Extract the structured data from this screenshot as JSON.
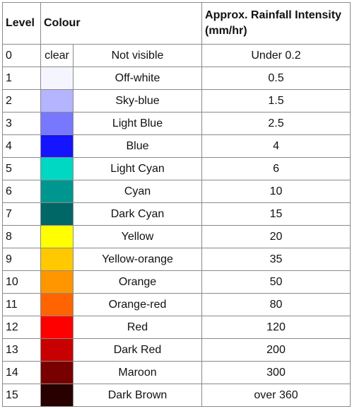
{
  "headers": {
    "level": "Level",
    "colour": "Colour",
    "intensity": "Approx. Rainfall Intensity (mm/hr)"
  },
  "rows": [
    {
      "level": "0",
      "swatch_text": "clear",
      "swatch_color": "#ffffff",
      "name": "Not visible",
      "intensity": "Under 0.2"
    },
    {
      "level": "1",
      "swatch_text": "",
      "swatch_color": "#f5f5ff",
      "name": "Off-white",
      "intensity": "0.5"
    },
    {
      "level": "2",
      "swatch_text": "",
      "swatch_color": "#b4b4ff",
      "name": "Sky-blue",
      "intensity": "1.5"
    },
    {
      "level": "3",
      "swatch_text": "",
      "swatch_color": "#7878ff",
      "name": "Light Blue",
      "intensity": "2.5"
    },
    {
      "level": "4",
      "swatch_text": "",
      "swatch_color": "#1414ff",
      "name": "Blue",
      "intensity": "4"
    },
    {
      "level": "5",
      "swatch_text": "",
      "swatch_color": "#00d8c3",
      "name": "Light Cyan",
      "intensity": "6"
    },
    {
      "level": "6",
      "swatch_text": "",
      "swatch_color": "#009690",
      "name": "Cyan",
      "intensity": "10"
    },
    {
      "level": "7",
      "swatch_text": "",
      "swatch_color": "#006666",
      "name": "Dark Cyan",
      "intensity": "15"
    },
    {
      "level": "8",
      "swatch_text": "",
      "swatch_color": "#ffff00",
      "name": "Yellow",
      "intensity": "20"
    },
    {
      "level": "9",
      "swatch_text": "",
      "swatch_color": "#ffc800",
      "name": "Yellow-orange",
      "intensity": "35"
    },
    {
      "level": "10",
      "swatch_text": "",
      "swatch_color": "#ff9600",
      "name": "Orange",
      "intensity": "50"
    },
    {
      "level": "11",
      "swatch_text": "",
      "swatch_color": "#ff6400",
      "name": "Orange-red",
      "intensity": "80"
    },
    {
      "level": "12",
      "swatch_text": "",
      "swatch_color": "#ff0000",
      "name": "Red",
      "intensity": "120"
    },
    {
      "level": "13",
      "swatch_text": "",
      "swatch_color": "#c80000",
      "name": "Dark Red",
      "intensity": "200"
    },
    {
      "level": "14",
      "swatch_text": "",
      "swatch_color": "#780000",
      "name": "Maroon",
      "intensity": "300"
    },
    {
      "level": "15",
      "swatch_text": "",
      "swatch_color": "#280000",
      "name": "Dark Brown",
      "intensity": "over 360"
    }
  ]
}
